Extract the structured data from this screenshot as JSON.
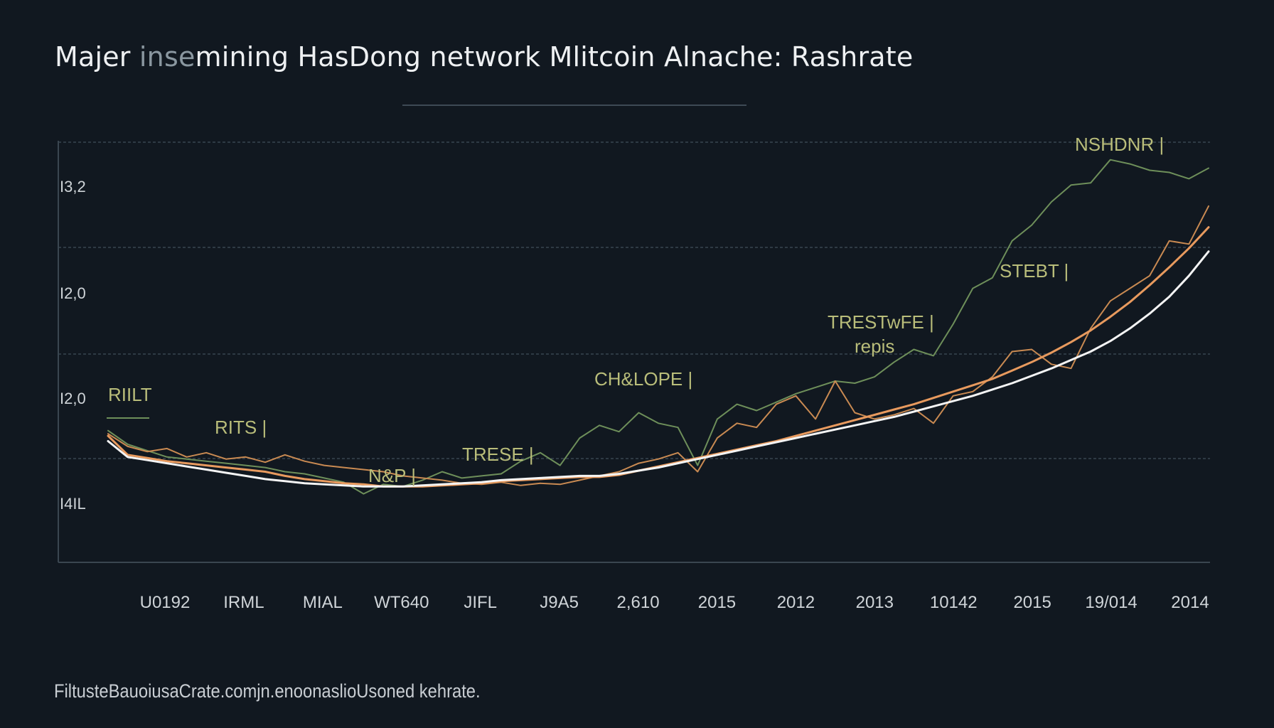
{
  "title": {
    "prefix": "Majer ",
    "ghost": "inse",
    "suffix": "mining HasDong network Mlitcoin Alnache: Rashrate"
  },
  "footnote": "FiltusteBauoiusaCrate.comjn.enoonaslioUsoned kehrate.",
  "colors": {
    "background": "#111820",
    "grid": "#2e3a44",
    "axis": "#3a4650",
    "white_line": "#f4f4f4",
    "orange_line": "#e89a5e",
    "green_line": "#6e8f5a",
    "brown_line": "#c98a52",
    "annotation": "#b9bd7a"
  },
  "chart_data": {
    "type": "line",
    "title": "Majer insemining HasDong network Mlitcoin Alnache: Rashrate",
    "xlabel": "",
    "ylabel": "",
    "x_tick_labels": [
      "U0192",
      "IRML",
      "MIAL",
      "WT640",
      "JIFL",
      "J9A5",
      "2,610",
      "2015",
      "2012",
      "2013",
      "10142",
      "2015",
      "19/014",
      "2014"
    ],
    "y_tick_labels": [
      "I4IL",
      "I2,0",
      "I2,0",
      "I3,2"
    ],
    "x": [
      0,
      1,
      2,
      3,
      4,
      5,
      6,
      7,
      8,
      9,
      10,
      11,
      12,
      13,
      14,
      15,
      16,
      17,
      18,
      19,
      20,
      21,
      22,
      23,
      24,
      25,
      26,
      27,
      28,
      29,
      30,
      31,
      32,
      33,
      34,
      35,
      36,
      37,
      38,
      39,
      40,
      41,
      42,
      43,
      44,
      45,
      46,
      47,
      48,
      49,
      50,
      51,
      52,
      53,
      54,
      55,
      56
    ],
    "xlim": [
      0,
      56
    ],
    "ylim": [
      0,
      4
    ],
    "grid": true,
    "series": [
      {
        "role": "trend-white",
        "values": [
          1.15,
          1.0,
          0.97,
          0.94,
          0.91,
          0.88,
          0.85,
          0.82,
          0.79,
          0.77,
          0.75,
          0.74,
          0.73,
          0.72,
          0.72,
          0.72,
          0.73,
          0.74,
          0.75,
          0.76,
          0.78,
          0.79,
          0.8,
          0.81,
          0.82,
          0.82,
          0.84,
          0.87,
          0.9,
          0.94,
          0.98,
          1.02,
          1.06,
          1.1,
          1.14,
          1.18,
          1.22,
          1.26,
          1.3,
          1.34,
          1.38,
          1.43,
          1.48,
          1.53,
          1.58,
          1.64,
          1.7,
          1.77,
          1.84,
          1.92,
          2.0,
          2.1,
          2.22,
          2.36,
          2.52,
          2.72,
          2.95
        ]
      },
      {
        "role": "trend-orange",
        "values": [
          1.2,
          1.02,
          0.99,
          0.96,
          0.94,
          0.92,
          0.9,
          0.88,
          0.86,
          0.82,
          0.79,
          0.77,
          0.75,
          0.74,
          0.72,
          0.72,
          0.72,
          0.73,
          0.74,
          0.75,
          0.77,
          0.78,
          0.79,
          0.8,
          0.81,
          0.81,
          0.83,
          0.87,
          0.91,
          0.95,
          0.99,
          1.03,
          1.07,
          1.11,
          1.15,
          1.2,
          1.25,
          1.3,
          1.35,
          1.4,
          1.45,
          1.5,
          1.56,
          1.62,
          1.68,
          1.74,
          1.82,
          1.9,
          1.99,
          2.09,
          2.2,
          2.33,
          2.47,
          2.63,
          2.8,
          2.98,
          3.18
        ]
      },
      {
        "role": "noisy-brown",
        "values": [
          1.22,
          1.1,
          1.05,
          1.08,
          1.0,
          1.04,
          0.98,
          1.0,
          0.95,
          1.02,
          0.96,
          0.92,
          0.9,
          0.88,
          0.86,
          0.82,
          0.8,
          0.78,
          0.75,
          0.74,
          0.76,
          0.73,
          0.75,
          0.74,
          0.78,
          0.82,
          0.86,
          0.94,
          0.98,
          1.04,
          0.86,
          1.18,
          1.32,
          1.28,
          1.5,
          1.58,
          1.36,
          1.72,
          1.42,
          1.36,
          1.4,
          1.46,
          1.32,
          1.58,
          1.62,
          1.76,
          2.0,
          2.02,
          1.88,
          1.84,
          2.22,
          2.48,
          2.6,
          2.72,
          3.05,
          3.02,
          3.38
        ]
      },
      {
        "role": "noisy-green",
        "values": [
          1.25,
          1.12,
          1.06,
          1.0,
          0.98,
          0.96,
          0.94,
          0.92,
          0.9,
          0.86,
          0.84,
          0.8,
          0.76,
          0.65,
          0.74,
          0.72,
          0.78,
          0.86,
          0.8,
          0.82,
          0.84,
          0.96,
          1.04,
          0.92,
          1.18,
          1.3,
          1.24,
          1.42,
          1.32,
          1.28,
          0.92,
          1.36,
          1.5,
          1.44,
          1.52,
          1.6,
          1.66,
          1.72,
          1.7,
          1.76,
          1.9,
          2.02,
          1.96,
          2.26,
          2.6,
          2.7,
          3.05,
          3.2,
          3.42,
          3.58,
          3.6,
          3.82,
          3.78,
          3.72,
          3.7,
          3.64,
          3.74
        ]
      }
    ],
    "annotations": [
      "RIILT",
      "RITS |",
      "TRESE |",
      "N&P |",
      "CH&LOPE |",
      "TRESTwFE |",
      "repis",
      "STEBT |",
      "NSHDNR |"
    ]
  }
}
